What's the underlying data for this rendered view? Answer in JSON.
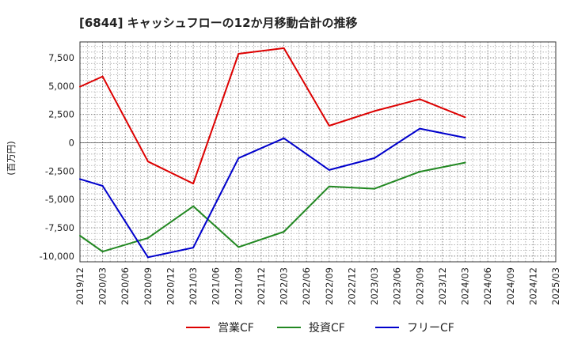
{
  "chart_data": {
    "type": "line",
    "title": "[6844]  キャッシュフローの12か月移動合計の推移",
    "ylabel": "(百万円)",
    "xlabel": "",
    "ylim": [
      -10500,
      8900
    ],
    "yticks": [
      7500,
      5000,
      2500,
      0,
      -2500,
      -5000,
      -7500,
      -10000
    ],
    "ytick_labels": [
      "7,500",
      "5,000",
      "2,500",
      "0",
      "-2,500",
      "-5,000",
      "-7,500",
      "-10,000"
    ],
    "x_ticks": [
      "2019/12",
      "2020/03",
      "2020/06",
      "2020/09",
      "2020/12",
      "2021/03",
      "2021/06",
      "2021/09",
      "2021/12",
      "2022/03",
      "2022/06",
      "2022/09",
      "2022/12",
      "2023/03",
      "2023/06",
      "2023/09",
      "2023/12",
      "2024/03",
      "2024/06",
      "2024/09",
      "2024/12",
      "2025/03"
    ],
    "grid": true,
    "legend_position": "bottom-center",
    "series": [
      {
        "name": "営業CF",
        "color": "#dd0000",
        "x": [
          "2019/12",
          "2020/03",
          "2020/09",
          "2021/03",
          "2021/09",
          "2022/03",
          "2022/09",
          "2023/03",
          "2023/09",
          "2024/03"
        ],
        "values": [
          4950,
          5850,
          -1650,
          -3600,
          7850,
          8350,
          1500,
          2800,
          3850,
          2250
        ]
      },
      {
        "name": "投資CF",
        "color": "#228822",
        "x": [
          "2019/12",
          "2020/03",
          "2020/09",
          "2021/03",
          "2021/09",
          "2022/03",
          "2022/09",
          "2023/03",
          "2023/09",
          "2024/03"
        ],
        "values": [
          -8200,
          -9600,
          -8400,
          -5600,
          -9200,
          -7850,
          -3850,
          -4050,
          -2550,
          -1750
        ]
      },
      {
        "name": "フリーCF",
        "color": "#0000cc",
        "x": [
          "2019/12",
          "2020/03",
          "2020/09",
          "2021/03",
          "2021/09",
          "2022/03",
          "2022/09",
          "2023/03",
          "2023/09",
          "2024/03"
        ],
        "values": [
          -3200,
          -3800,
          -10100,
          -9250,
          -1350,
          400,
          -2400,
          -1350,
          1250,
          450
        ]
      }
    ]
  }
}
